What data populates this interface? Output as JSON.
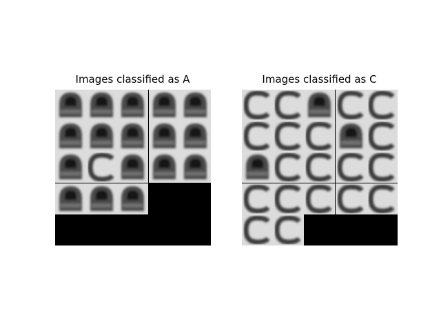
{
  "panels": [
    {
      "title": "Images classified as A",
      "grid_cols": 5,
      "grid_rows": 5,
      "tiles": [
        "A",
        "A",
        "A",
        "A",
        "A",
        "A",
        "A",
        "A",
        "A",
        "A",
        "A",
        "C",
        "A",
        "A",
        "A",
        "A",
        "A",
        "A"
      ],
      "background": "#000000"
    },
    {
      "title": "Images classified as C",
      "grid_cols": 5,
      "grid_rows": 5,
      "tiles": [
        "C",
        "C",
        "A",
        "C",
        "C",
        "C",
        "C",
        "C",
        "A",
        "C",
        "A",
        "C",
        "C",
        "C",
        "C",
        "C",
        "C",
        "C",
        "C",
        "C",
        "C",
        "C"
      ],
      "background": "#000000"
    }
  ]
}
